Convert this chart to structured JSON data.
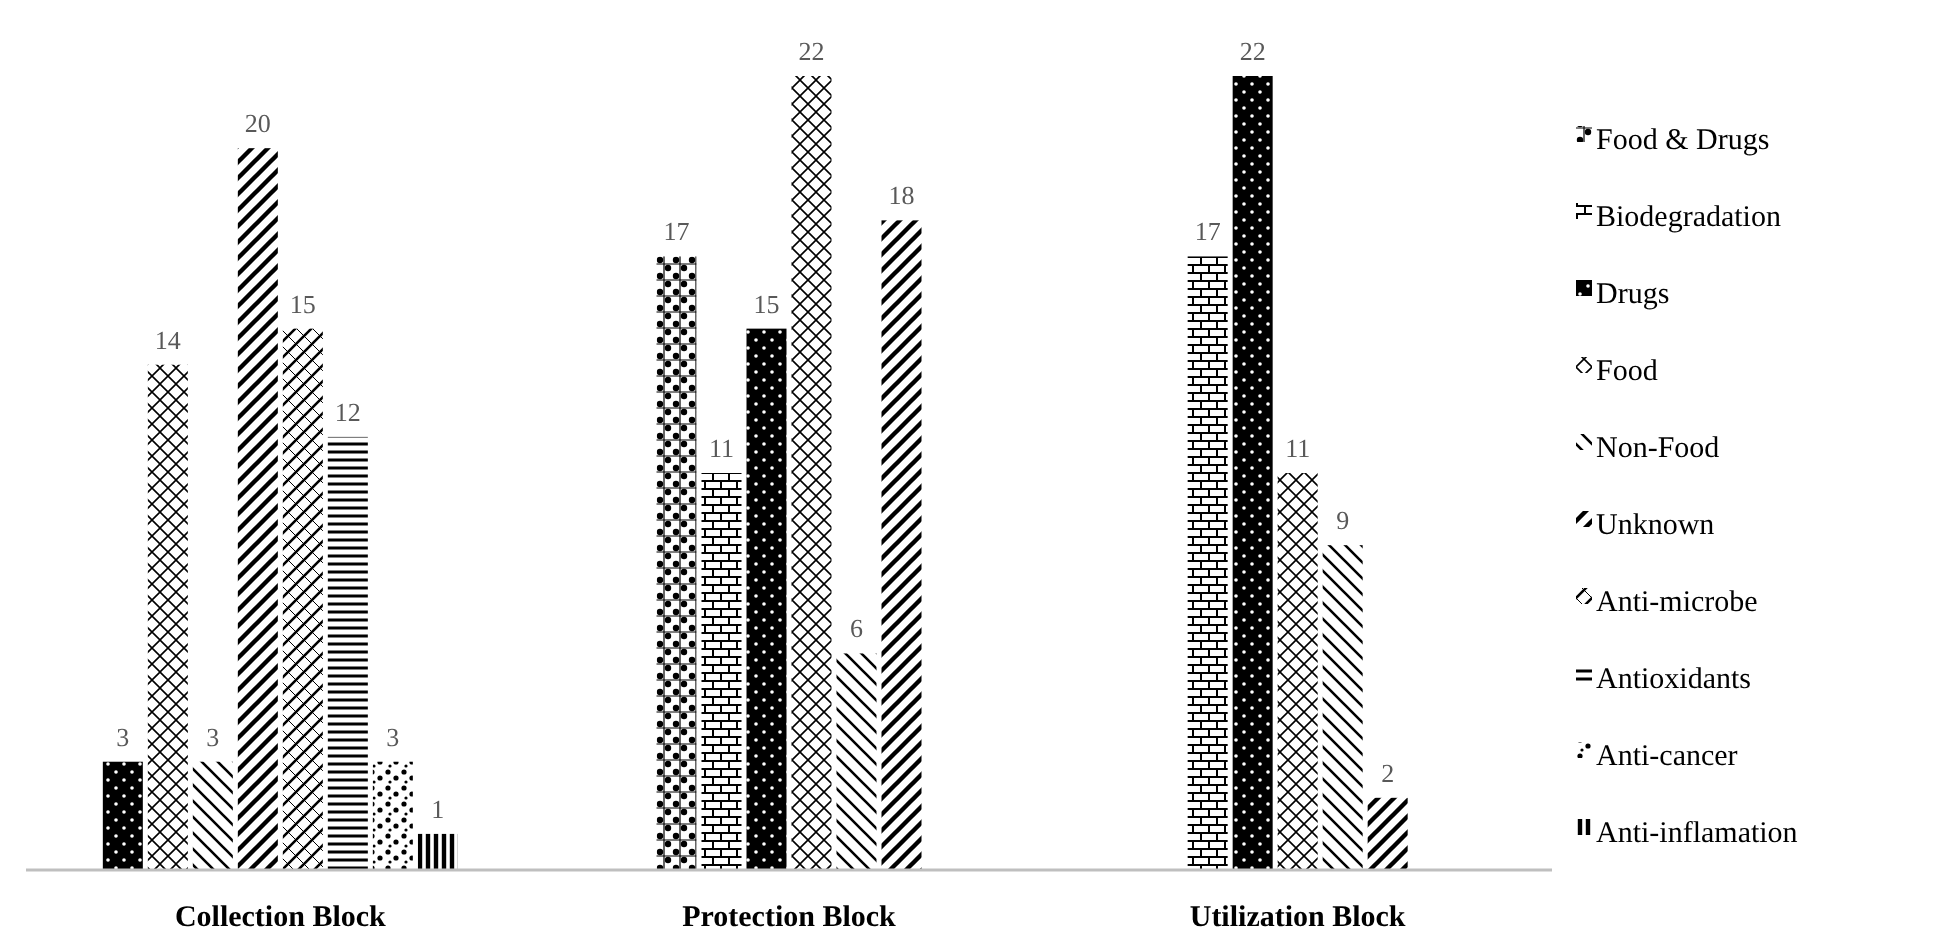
{
  "chart_data": {
    "type": "bar",
    "categories": [
      "Collection Block",
      "Protection Block",
      "Utilization Block"
    ],
    "series": [
      {
        "name": "Food & Drugs",
        "color": "#000000",
        "values": [
          null,
          17,
          null
        ]
      },
      {
        "name": "Biodegradation",
        "color": "#000000",
        "values": [
          null,
          11,
          17
        ]
      },
      {
        "name": "Drugs",
        "color": "#000000",
        "values": [
          3,
          15,
          22
        ]
      },
      {
        "name": "Food",
        "color": "#000000",
        "values": [
          14,
          22,
          11
        ]
      },
      {
        "name": "Non-Food",
        "color": "#000000",
        "values": [
          3,
          6,
          9
        ]
      },
      {
        "name": "Unknown",
        "color": "#000000",
        "values": [
          20,
          18,
          2
        ]
      },
      {
        "name": "Anti-microbe",
        "color": "#000000",
        "values": [
          15,
          null,
          null
        ]
      },
      {
        "name": "Antioxidants",
        "color": "#000000",
        "values": [
          12,
          null,
          null
        ]
      },
      {
        "name": "Anti-cancer",
        "color": "#000000",
        "values": [
          3,
          null,
          null
        ]
      },
      {
        "name": "Anti-inflamation",
        "color": "#000000",
        "values": [
          1,
          null,
          null
        ]
      }
    ],
    "ylim": [
      0,
      22
    ],
    "data_labels": true,
    "legend": "right",
    "grid": false
  }
}
